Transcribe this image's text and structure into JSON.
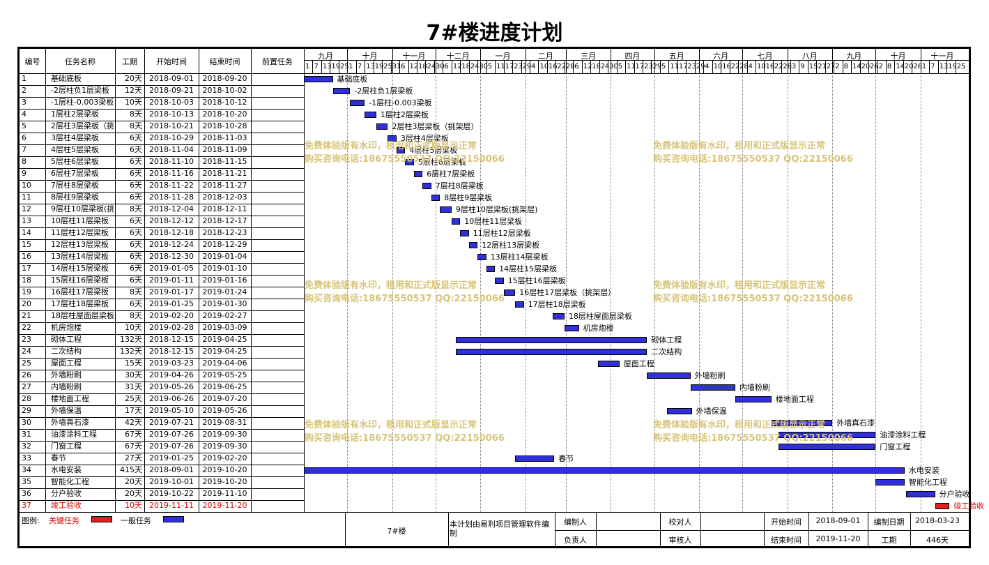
{
  "title": "7#楼进度计划",
  "headers": {
    "no": "编号",
    "name": "任务名称",
    "dur": "工期",
    "start": "开始时间",
    "end": "结束时间",
    "pred": "前置任务"
  },
  "months": [
    "九月",
    "十月",
    "十一月",
    "十二月",
    "一月",
    "二月",
    "三月",
    "四月",
    "五月",
    "六月",
    "七月",
    "八月",
    "九月",
    "十月",
    "十一月"
  ],
  "days": [
    "1",
    "7",
    "13",
    "19",
    "25",
    "1",
    "7",
    "13",
    "19",
    "25",
    "31",
    "6",
    "12",
    "18",
    "24",
    "30",
    "6",
    "12",
    "18",
    "24",
    "30",
    "5",
    "11",
    "17",
    "23",
    "29",
    "4",
    "10",
    "16",
    "22",
    "28",
    "6",
    "12",
    "18",
    "24",
    "30",
    "5",
    "11",
    "17",
    "23",
    "29",
    "5",
    "11",
    "17",
    "23",
    "29",
    "4",
    "10",
    "16",
    "22",
    "28",
    "4",
    "10",
    "16",
    "22",
    "28",
    "3",
    "9",
    "15",
    "21",
    "27",
    "2",
    "8",
    "14",
    "20",
    "26",
    "2",
    "8",
    "14",
    "20",
    "26",
    "1",
    "7",
    "13",
    "19",
    "25",
    "1",
    "7"
  ],
  "tasks": [
    {
      "no": "1",
      "name": "基础底板",
      "dur": "20天",
      "start": "2018-09-01",
      "end": "2018-09-20"
    },
    {
      "no": "2",
      "name": "-2层柱负1层梁板",
      "dur": "12天",
      "start": "2018-09-21",
      "end": "2018-10-02"
    },
    {
      "no": "3",
      "name": "-1层柱-0.003梁板",
      "dur": "10天",
      "start": "2018-10-03",
      "end": "2018-10-12"
    },
    {
      "no": "4",
      "name": "1层柱2层梁板",
      "dur": "8天",
      "start": "2018-10-13",
      "end": "2018-10-20"
    },
    {
      "no": "5",
      "name": "2层柱3层梁板（挑架层）",
      "dur": "8天",
      "start": "2018-10-21",
      "end": "2018-10-28"
    },
    {
      "no": "6",
      "name": "3层柱4层梁板",
      "dur": "6天",
      "start": "2018-10-29",
      "end": "2018-11-03"
    },
    {
      "no": "7",
      "name": "4层柱5层梁板",
      "dur": "6天",
      "start": "2018-11-04",
      "end": "2018-11-09"
    },
    {
      "no": "8",
      "name": "5层柱6层梁板",
      "dur": "6天",
      "start": "2018-11-10",
      "end": "2018-11-15"
    },
    {
      "no": "9",
      "name": "6层柱7层梁板",
      "dur": "6天",
      "start": "2018-11-16",
      "end": "2018-11-21"
    },
    {
      "no": "10",
      "name": "7层柱8层梁板",
      "dur": "6天",
      "start": "2018-11-22",
      "end": "2018-11-27"
    },
    {
      "no": "11",
      "name": "8层柱9层梁板",
      "dur": "6天",
      "start": "2018-11-28",
      "end": "2018-12-03"
    },
    {
      "no": "12",
      "name": "9层柱10层梁板(挑架层)",
      "dur": "8天",
      "start": "2018-12-04",
      "end": "2018-12-11"
    },
    {
      "no": "13",
      "name": "10层柱11层梁板",
      "dur": "6天",
      "start": "2018-12-12",
      "end": "2018-12-17"
    },
    {
      "no": "14",
      "name": "11层柱12层梁板",
      "dur": "6天",
      "start": "2018-12-18",
      "end": "2018-12-23"
    },
    {
      "no": "15",
      "name": "12层柱13层梁板",
      "dur": "6天",
      "start": "2018-12-24",
      "end": "2018-12-29"
    },
    {
      "no": "16",
      "name": "13层柱14层梁板",
      "dur": "6天",
      "start": "2018-12-30",
      "end": "2019-01-04"
    },
    {
      "no": "17",
      "name": "14层柱15层梁板",
      "dur": "6天",
      "start": "2019-01-05",
      "end": "2019-01-10"
    },
    {
      "no": "18",
      "name": "15层柱16层梁板",
      "dur": "6天",
      "start": "2019-01-11",
      "end": "2019-01-16"
    },
    {
      "no": "19",
      "name": "16层柱17层梁板（挑架层）",
      "dur": "8天",
      "start": "2019-01-17",
      "end": "2019-01-24"
    },
    {
      "no": "20",
      "name": "17层柱18层梁板",
      "dur": "6天",
      "start": "2019-01-25",
      "end": "2019-01-30"
    },
    {
      "no": "21",
      "name": "18层柱屋面层梁板",
      "dur": "8天",
      "start": "2019-02-20",
      "end": "2019-02-27"
    },
    {
      "no": "22",
      "name": "机房炮楼",
      "dur": "10天",
      "start": "2019-02-28",
      "end": "2019-03-09"
    },
    {
      "no": "23",
      "name": "砌体工程",
      "dur": "132天",
      "start": "2018-12-15",
      "end": "2019-04-25"
    },
    {
      "no": "24",
      "name": "二次结构",
      "dur": "132天",
      "start": "2018-12-15",
      "end": "2019-04-25"
    },
    {
      "no": "25",
      "name": "屋面工程",
      "dur": "15天",
      "start": "2019-03-23",
      "end": "2019-04-06"
    },
    {
      "no": "26",
      "name": "外墙粉刷",
      "dur": "30天",
      "start": "2019-04-26",
      "end": "2019-05-25"
    },
    {
      "no": "27",
      "name": "内墙粉刷",
      "dur": "31天",
      "start": "2019-05-26",
      "end": "2019-06-25"
    },
    {
      "no": "28",
      "name": "楼地面工程",
      "dur": "25天",
      "start": "2019-06-26",
      "end": "2019-07-20"
    },
    {
      "no": "29",
      "name": "外墙保温",
      "dur": "17天",
      "start": "2019-05-10",
      "end": "2019-05-26"
    },
    {
      "no": "30",
      "name": "外墙真石漆",
      "dur": "42天",
      "start": "2019-07-21",
      "end": "2019-08-31"
    },
    {
      "no": "31",
      "name": "油漆涂料工程",
      "dur": "67天",
      "start": "2019-07-26",
      "end": "2019-09-30"
    },
    {
      "no": "32",
      "name": "门窗工程",
      "dur": "67天",
      "start": "2019-07-26",
      "end": "2019-09-30"
    },
    {
      "no": "33",
      "name": "春节",
      "dur": "27天",
      "start": "2019-01-25",
      "end": "2019-02-20"
    },
    {
      "no": "34",
      "name": "水电安装",
      "dur": "415天",
      "start": "2018-09-01",
      "end": "2019-10-20"
    },
    {
      "no": "35",
      "name": "智能化工程",
      "dur": "20天",
      "start": "2019-10-01",
      "end": "2019-10-20"
    },
    {
      "no": "36",
      "name": "分户验收",
      "dur": "20天",
      "start": "2019-10-22",
      "end": "2019-11-10"
    },
    {
      "no": "37",
      "name": "竣工验收",
      "dur": "10天",
      "start": "2019-11-11",
      "end": "2019-11-20",
      "critical": true
    }
  ],
  "bar_labels": [
    "基础底板",
    "-2层柱负1层梁板",
    "-1层柱-0.003梁板",
    "1层柱2层梁板",
    "2层柱3层梁板（挑架层）",
    "3层柱4层梁板",
    "4层柱5层梁板",
    "5层柱6层梁板",
    "6层柱7层梁板",
    "7层柱8层梁板",
    "8层柱9层梁板",
    "9层柱10层梁板(挑架层)",
    "10层柱11层梁板",
    "11层柱12层梁板",
    "12层柱13层梁板",
    "13层柱14层梁板",
    "14层柱15层梁板",
    "15层柱16层梁板",
    "16层柱17层梁板（挑架层）",
    "17层柱18层梁板",
    "18层柱屋面层梁板",
    "机房炮楼",
    "砌体工程",
    "二次结构",
    "屋面工程",
    "外墙粉刷",
    "内墙粉刷",
    "楼地面工程",
    "外墙保温",
    "外墙真石漆",
    "油漆涂料工程",
    "门窗工程",
    "春节",
    "水电安装",
    "智能化工程",
    "分户验收",
    "竣工验收"
  ],
  "watermark": {
    "line1": "免费体验版有水印，租用和正式版显示正常",
    "line2": "购买咨询电话:18675550537 QQ:22150066"
  },
  "footer": {
    "legend_label": "图例:",
    "critical_label": "关键任务",
    "normal_label": "一般任务",
    "project": "7#楼",
    "software": "本计划由易利项目管理软件编制",
    "compiler": "编制人",
    "owner": "负责人",
    "checker": "校对人",
    "auditor": "审核人",
    "start_label": "开始时间",
    "start_value": "2018-09-01",
    "end_label": "结束时间",
    "end_value": "2019-11-20",
    "date_label": "编制日期",
    "date_value": "2018-03-23",
    "dur_label": "工期",
    "dur_value": "446天"
  },
  "colors": {
    "critical": "#e02020",
    "normal": "#3030d8",
    "watermark": "#d8c478"
  }
}
